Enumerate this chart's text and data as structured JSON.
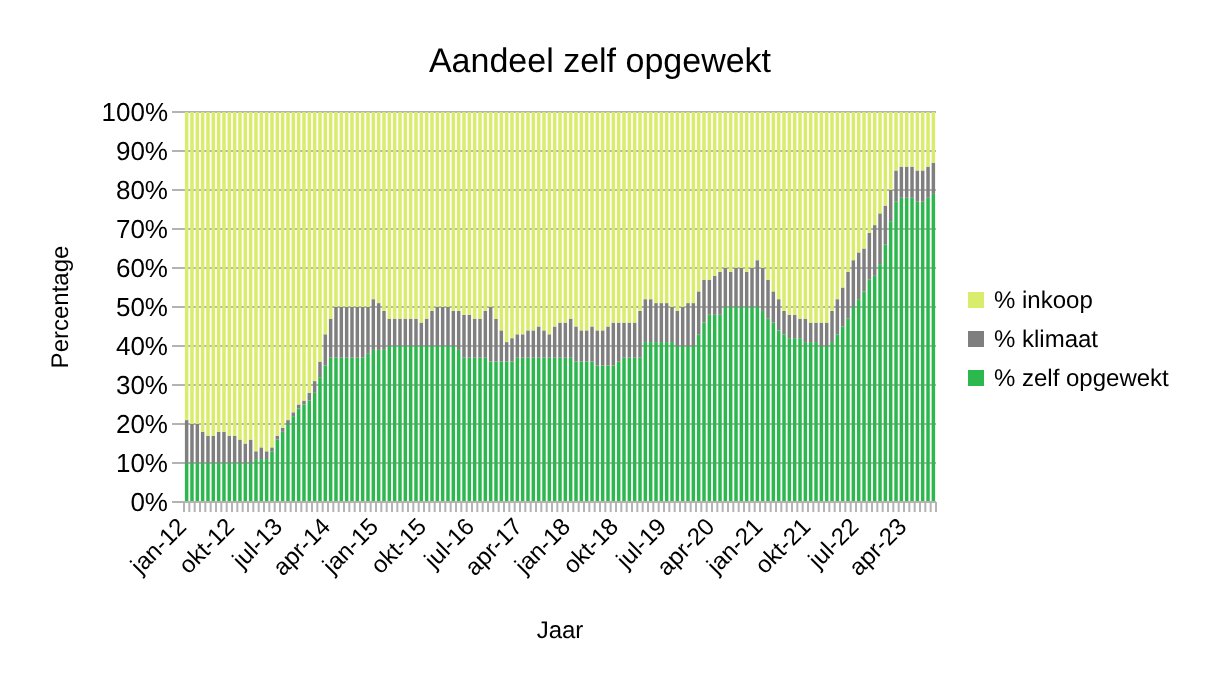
{
  "chart_data": {
    "type": "bar",
    "title": "Aandeel zelf opgewekt",
    "xlabel": "Jaar",
    "ylabel": "Percentage",
    "stacked": true,
    "grid": "y",
    "legend": "right",
    "categories": [
      "jan-12",
      null,
      null,
      null,
      null,
      null,
      null,
      null,
      null,
      "okt-12",
      null,
      null,
      null,
      null,
      null,
      null,
      null,
      null,
      "jul-13",
      null,
      null,
      null,
      null,
      null,
      null,
      null,
      null,
      "apr-14",
      null,
      null,
      null,
      null,
      null,
      null,
      null,
      null,
      "jan-15",
      null,
      null,
      null,
      null,
      null,
      null,
      null,
      null,
      "okt-15",
      null,
      null,
      null,
      null,
      null,
      null,
      null,
      null,
      "jul-16",
      null,
      null,
      null,
      null,
      null,
      null,
      null,
      null,
      "apr-17",
      null,
      null,
      null,
      null,
      null,
      null,
      null,
      null,
      "jan-18",
      null,
      null,
      null,
      null,
      null,
      null,
      null,
      null,
      "okt-18",
      null,
      null,
      null,
      null,
      null,
      null,
      null,
      null,
      "jul-19",
      null,
      null,
      null,
      null,
      null,
      null,
      null,
      null,
      "apr-20",
      null,
      null,
      null,
      null,
      null,
      null,
      null,
      null,
      "jan-21",
      null,
      null,
      null,
      null,
      null,
      null,
      null,
      null,
      "okt-21",
      null,
      null,
      null,
      null,
      null,
      null,
      null,
      null,
      "jul-22",
      null,
      null,
      null,
      null,
      null,
      null,
      null,
      null,
      "apr-23",
      null,
      null,
      null,
      null,
      null
    ],
    "ylim": [
      0,
      100
    ],
    "yticks": [
      {
        "value": 0,
        "label": "0%"
      },
      {
        "value": 10,
        "label": "10%"
      },
      {
        "value": 20,
        "label": "20%"
      },
      {
        "value": 30,
        "label": "30%"
      },
      {
        "value": 40,
        "label": "40%"
      },
      {
        "value": 50,
        "label": "50%"
      },
      {
        "value": 60,
        "label": "60%"
      },
      {
        "value": 70,
        "label": "70%"
      },
      {
        "value": 80,
        "label": "80%"
      },
      {
        "value": 90,
        "label": "90%"
      },
      {
        "value": 100,
        "label": "100%"
      }
    ],
    "series": [
      {
        "name": "% zelf opgewekt",
        "color": "#2db84d",
        "values": [
          10,
          10,
          10,
          10,
          10,
          10,
          10,
          10,
          10,
          10,
          10,
          10,
          10,
          11,
          11,
          11,
          13,
          16,
          18,
          20,
          22,
          24,
          25,
          26,
          28,
          32,
          35,
          37,
          37,
          37,
          37,
          37,
          37,
          37,
          38,
          39,
          39,
          39,
          40,
          40,
          40,
          40,
          40,
          40,
          40,
          40,
          40,
          40,
          40,
          40,
          40,
          39,
          37,
          37,
          37,
          37,
          37,
          36,
          36,
          36,
          36,
          36,
          37,
          37,
          37,
          37,
          37,
          37,
          37,
          37,
          37,
          37,
          37,
          36,
          36,
          36,
          36,
          35,
          35,
          35,
          35,
          36,
          37,
          37,
          37,
          37,
          41,
          41,
          41,
          41,
          41,
          41,
          40,
          40,
          40,
          40,
          43,
          46,
          48,
          48,
          48,
          50,
          50,
          50,
          50,
          50,
          50,
          50,
          49,
          47,
          46,
          44,
          43,
          42,
          42,
          42,
          41,
          41,
          41,
          40,
          40,
          41,
          43,
          45,
          47,
          50,
          52,
          54,
          57,
          58,
          61,
          66,
          72,
          77,
          78,
          78,
          78,
          77,
          77,
          78,
          79
        ]
      },
      {
        "name": "% klimaat",
        "color": "#7f7f7f",
        "values": [
          11,
          10,
          10,
          8,
          7,
          7,
          8,
          8,
          7,
          7,
          6,
          5,
          6,
          2,
          3,
          2,
          1,
          1,
          1,
          1,
          1,
          1,
          1,
          2,
          3,
          4,
          8,
          10,
          13,
          13,
          13,
          13,
          13,
          13,
          12,
          13,
          12,
          10,
          7,
          7,
          7,
          7,
          7,
          7,
          6,
          7,
          9,
          10,
          10,
          10,
          9,
          10,
          11,
          11,
          10,
          10,
          12,
          14,
          11,
          8,
          5,
          6,
          6,
          6,
          7,
          7,
          8,
          7,
          6,
          8,
          9,
          9,
          10,
          9,
          8,
          8,
          9,
          9,
          9,
          10,
          11,
          10,
          9,
          9,
          9,
          12,
          11,
          11,
          10,
          10,
          10,
          9,
          9,
          10,
          11,
          11,
          11,
          11,
          9,
          10,
          11,
          10,
          9,
          10,
          10,
          9,
          10,
          12,
          11,
          10,
          8,
          8,
          6,
          6,
          6,
          5,
          6,
          5,
          5,
          6,
          6,
          8,
          9,
          10,
          12,
          12,
          12,
          11,
          12,
          13,
          13,
          10,
          8,
          8,
          8,
          8,
          8,
          8,
          8,
          8,
          8
        ]
      },
      {
        "name": "% inkoop",
        "color": "#d9ec6c",
        "values": [
          79,
          80,
          80,
          82,
          83,
          83,
          82,
          82,
          83,
          83,
          84,
          85,
          84,
          87,
          86,
          87,
          86,
          83,
          81,
          79,
          77,
          75,
          74,
          72,
          69,
          64,
          57,
          53,
          50,
          50,
          50,
          50,
          50,
          50,
          50,
          48,
          49,
          51,
          53,
          53,
          53,
          53,
          53,
          53,
          54,
          53,
          51,
          50,
          50,
          50,
          51,
          51,
          52,
          52,
          53,
          53,
          51,
          50,
          53,
          56,
          59,
          58,
          57,
          57,
          56,
          56,
          55,
          56,
          57,
          55,
          54,
          54,
          53,
          55,
          56,
          56,
          55,
          56,
          56,
          55,
          54,
          54,
          54,
          54,
          54,
          51,
          48,
          48,
          49,
          49,
          49,
          50,
          51,
          50,
          49,
          49,
          46,
          43,
          43,
          42,
          41,
          40,
          41,
          40,
          40,
          41,
          40,
          38,
          40,
          43,
          46,
          48,
          51,
          52,
          52,
          53,
          53,
          54,
          54,
          54,
          54,
          51,
          48,
          45,
          41,
          38,
          36,
          35,
          31,
          29,
          26,
          24,
          20,
          15,
          14,
          14,
          14,
          15,
          15,
          14,
          13
        ]
      }
    ]
  }
}
